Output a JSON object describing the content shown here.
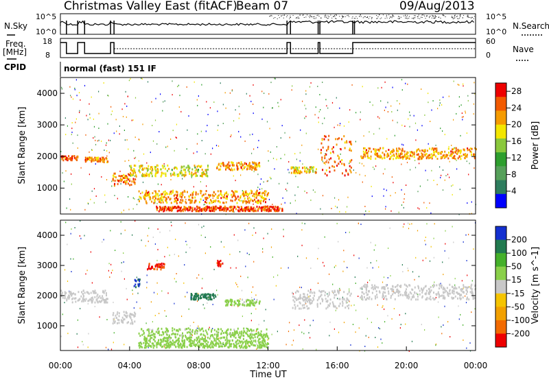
{
  "header": {
    "title": "Christmas Valley East (fitACF)",
    "beam": "Beam 07",
    "date": "09/Aug/2013",
    "cpid_label": "CPID",
    "cpid_value": "normal (fast) 151 IF"
  },
  "chart_data": [
    {
      "type": "line",
      "panel": "noise",
      "left_label": "N.Sky",
      "right_label": "N.Search",
      "left_ticks": [
        "10^5",
        "10^0"
      ],
      "right_ticks": [
        "10^5",
        "10^0"
      ],
      "scale": "log"
    },
    {
      "type": "line",
      "panel": "frequency",
      "left_label_lines": [
        "Freq.",
        "[MHz]"
      ],
      "right_label": "Nave",
      "left_ticks": [
        18,
        8
      ],
      "right_ticks": [
        60,
        0
      ],
      "series": [
        {
          "name": "Freq.",
          "x": [
            0.0,
            0.35,
            0.35,
            1.0,
            1.0,
            1.4,
            1.4,
            2.9,
            2.9,
            3.1,
            3.1,
            13.1,
            13.1,
            13.3,
            13.3,
            14.9,
            14.9,
            15.0,
            15.0,
            16.9,
            16.9,
            17.0,
            17.0,
            24.0
          ],
          "values": [
            18,
            18,
            10,
            10,
            18,
            18,
            10,
            10,
            18,
            18,
            10,
            10,
            18,
            18,
            10,
            10,
            18,
            18,
            10,
            10,
            18,
            18,
            18,
            18
          ]
        }
      ]
    },
    {
      "type": "heatmap",
      "panel": "power",
      "xlabel": "",
      "ylabel": "Slant Range [km]",
      "xlim": [
        0,
        24
      ],
      "ylim": [
        180,
        4500
      ],
      "yticks": [
        1000,
        2000,
        3000,
        4000
      ],
      "colorbar_label": "Power [dB]",
      "colorbar_ticks": [
        28,
        24,
        20,
        16,
        12,
        8,
        4
      ],
      "colorbar_range": [
        0,
        30
      ],
      "colors": [
        "#0000ff",
        "#2e7d5e",
        "#56a05a",
        "#2e9e2e",
        "#8ac83c",
        "#f3e600",
        "#f59b00",
        "#f25a00",
        "#ee0000"
      ],
      "features": [
        {
          "t0": 0.0,
          "t1": 1.0,
          "r0": 1900,
          "r1": 2050,
          "level": 24
        },
        {
          "t0": 1.4,
          "t1": 2.7,
          "r0": 1850,
          "r1": 2000,
          "level": 22
        },
        {
          "t0": 3.0,
          "t1": 4.3,
          "r0": 1100,
          "r1": 1500,
          "level": 24
        },
        {
          "t0": 4.5,
          "t1": 12.0,
          "r0": 550,
          "r1": 950,
          "level": 22
        },
        {
          "t0": 5.5,
          "t1": 12.8,
          "r0": 300,
          "r1": 450,
          "level": 26
        },
        {
          "t0": 4.0,
          "t1": 8.5,
          "r0": 1400,
          "r1": 1750,
          "level": 18
        },
        {
          "t0": 9.0,
          "t1": 11.5,
          "r0": 1600,
          "r1": 1850,
          "level": 22
        },
        {
          "t0": 13.3,
          "t1": 14.8,
          "r0": 1500,
          "r1": 1700,
          "level": 20
        },
        {
          "t0": 15.0,
          "t1": 16.8,
          "r0": 1400,
          "r1": 2700,
          "level": 24
        },
        {
          "t0": 17.3,
          "t1": 24.0,
          "r0": 1950,
          "r1": 2300,
          "level": 22
        }
      ]
    },
    {
      "type": "heatmap",
      "panel": "velocity",
      "xlabel": "Time UT",
      "ylabel": "Slant Range [km]",
      "xlim": [
        0,
        24
      ],
      "ylim": [
        180,
        4500
      ],
      "xticks": [
        "00:00",
        "04:00",
        "08:00",
        "12:00",
        "16:00",
        "20:00",
        "00:00"
      ],
      "yticks": [
        1000,
        2000,
        3000,
        4000
      ],
      "colorbar_label": "Velocity [m s^-1]",
      "colorbar_ticks": [
        200,
        100,
        50,
        15,
        -15,
        -50,
        -100,
        -200
      ],
      "colorbar_range": [
        -250,
        250
      ],
      "colors": [
        "#ee0000",
        "#f26a00",
        "#f2a000",
        "#f5c400",
        "#c8c8c8",
        "#8ad04a",
        "#45b02a",
        "#227a50",
        "#1430d0"
      ],
      "features": [
        {
          "t0": 0.0,
          "t1": 2.7,
          "r0": 1800,
          "r1": 2200,
          "level": 0
        },
        {
          "t0": 3.0,
          "t1": 4.3,
          "r0": 1100,
          "r1": 1500,
          "level": 0
        },
        {
          "t0": 4.5,
          "t1": 12.0,
          "r0": 550,
          "r1": 950,
          "level": 40
        },
        {
          "t0": 4.5,
          "t1": 12.0,
          "r0": 300,
          "r1": 550,
          "level": 60
        },
        {
          "t0": 7.5,
          "t1": 9.0,
          "r0": 1900,
          "r1": 2100,
          "level": 180
        },
        {
          "t0": 4.2,
          "t1": 4.6,
          "r0": 2300,
          "r1": 2600,
          "level": 200
        },
        {
          "t0": 9.5,
          "t1": 11.5,
          "r0": 1700,
          "r1": 1900,
          "level": 40
        },
        {
          "t0": 13.3,
          "t1": 16.8,
          "r0": 1600,
          "r1": 2200,
          "level": 0
        },
        {
          "t0": 17.3,
          "t1": 24.0,
          "r0": 1900,
          "r1": 2400,
          "level": 0
        },
        {
          "t0": 5.0,
          "t1": 6.0,
          "r0": 2900,
          "r1": 3100,
          "level": -200
        },
        {
          "t0": 9.0,
          "t1": 9.4,
          "r0": 3000,
          "r1": 3200,
          "level": -200
        }
      ]
    }
  ]
}
